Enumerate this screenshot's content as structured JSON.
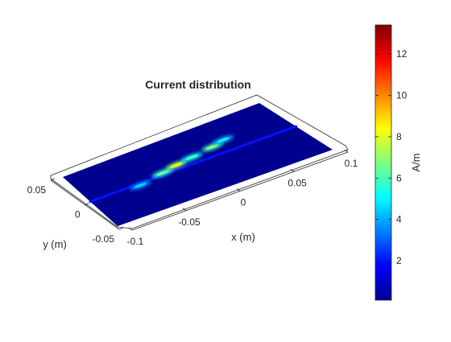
{
  "chart_data": {
    "type": "heatmap",
    "view": "3d-surface",
    "title": "Current distribution",
    "xlabel": "x (m)",
    "ylabel": "y (m)",
    "xlim": [
      -0.1,
      0.1
    ],
    "ylim": [
      -0.05,
      0.05
    ],
    "x_ticks": [
      {
        "value": -0.1,
        "label": "-0.1"
      },
      {
        "value": -0.05,
        "label": "-0.05"
      },
      {
        "value": 0,
        "label": "0"
      },
      {
        "value": 0.05,
        "label": "0.05"
      },
      {
        "value": 0.1,
        "label": "0.1"
      }
    ],
    "y_ticks": [
      {
        "value": -0.05,
        "label": "-0.05"
      },
      {
        "value": 0,
        "label": "0"
      },
      {
        "value": 0.05,
        "label": "0.05"
      }
    ],
    "colormap": "jet",
    "colorbar": {
      "label": "A/m",
      "range": [
        0.1,
        13.4
      ],
      "ticks": [
        {
          "value": 2,
          "label": "2"
        },
        {
          "value": 4,
          "label": "4"
        },
        {
          "value": 6,
          "label": "6"
        },
        {
          "value": 8,
          "label": "8"
        },
        {
          "value": 10,
          "label": "10"
        },
        {
          "value": 12,
          "label": "12"
        }
      ]
    },
    "background_level": 0.3,
    "feed_line": {
      "y": 0.0,
      "x_start": -0.1,
      "x_end": 0.1,
      "value": 2.0
    },
    "hotspots": [
      {
        "x": -0.053,
        "y": -0.003,
        "value": 3.5
      },
      {
        "x": -0.028,
        "y": 0.003,
        "value": 5.5
      },
      {
        "x": -0.012,
        "y": 0.007,
        "value": 7.0
      },
      {
        "x": 0.005,
        "y": 0.01,
        "value": 5.0
      },
      {
        "x": 0.028,
        "y": 0.014,
        "value": 6.0
      },
      {
        "x": 0.041,
        "y": 0.018,
        "value": 4.0
      }
    ]
  }
}
